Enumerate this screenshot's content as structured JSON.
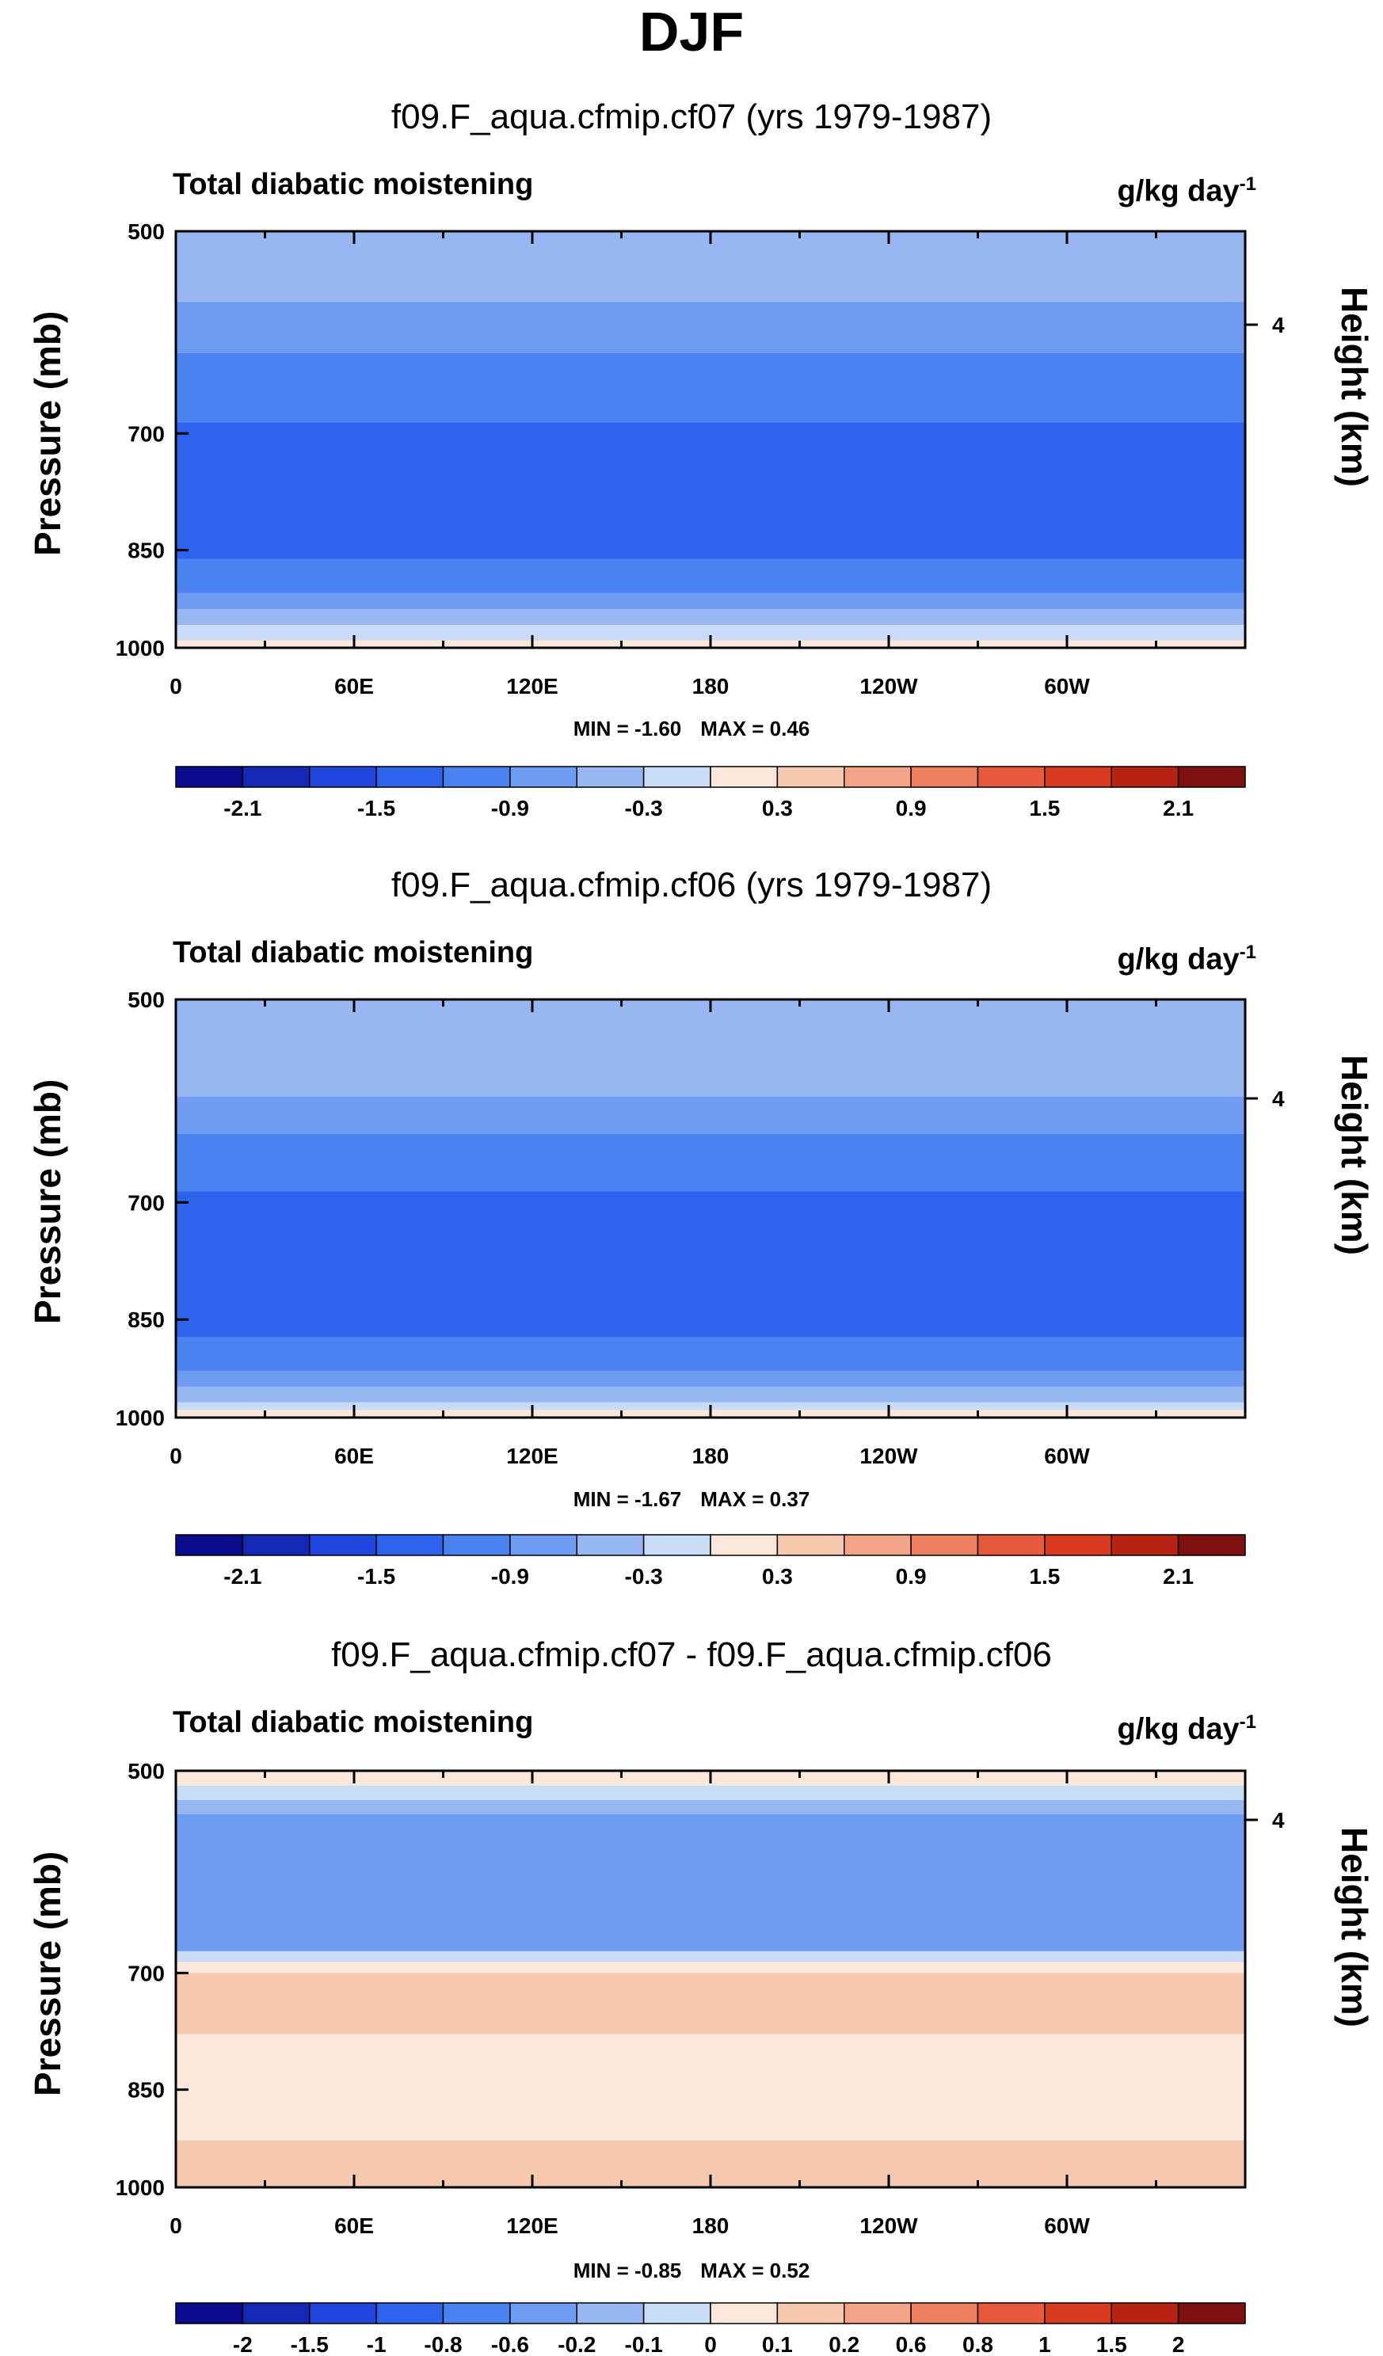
{
  "figure": {
    "title": "DJF",
    "panels": [
      {
        "title": "f09.F_aqua.cfmip.cf07 (yrs 1979-1987)",
        "variable": "Total diabatic moistening",
        "units": "g/kg day",
        "units_exp": "-1",
        "ylabel": "Pressure (mb)",
        "ylabel_right": "Height (km)",
        "min_label": "MIN = -1.60",
        "max_label": "MAX = 0.46"
      },
      {
        "title": "f09.F_aqua.cfmip.cf06 (yrs 1979-1987)",
        "variable": "Total diabatic moistening",
        "units": "g/kg day",
        "units_exp": "-1",
        "ylabel": "Pressure (mb)",
        "ylabel_right": "Height (km)",
        "min_label": "MIN = -1.67",
        "max_label": "MAX = 0.37"
      },
      {
        "title": "f09.F_aqua.cfmip.cf07 - f09.F_aqua.cfmip.cf06",
        "variable": "Total diabatic moistening",
        "units": "g/kg day",
        "units_exp": "-1",
        "ylabel": "Pressure (mb)",
        "ylabel_right": "Height (km)",
        "min_label": "MIN = -0.85",
        "max_label": "MAX = 0.52"
      }
    ],
    "pressure_ticks": [
      "500",
      "700",
      "850",
      "1000"
    ],
    "longitude_ticks": [
      "0",
      "60E",
      "120E",
      "180",
      "120W",
      "60W"
    ],
    "height_ticks": [
      "4"
    ]
  },
  "chart_data": [
    {
      "type": "heatmap",
      "title": "f09.F_aqua.cfmip.cf07 (yrs 1979-1987)",
      "xlabel": "",
      "ylabel": "Pressure (mb)",
      "x_ticks": [
        "0",
        "60E",
        "120E",
        "180",
        "120W",
        "60W"
      ],
      "y_ticks": [
        500,
        700,
        850,
        1000
      ],
      "ylim": [
        1000,
        500
      ],
      "min": -1.6,
      "max": 0.46,
      "colorbar_labels": [
        "-2.1",
        "-1.5",
        "-0.9",
        "-0.3",
        "0.3",
        "0.9",
        "1.5",
        "2.1"
      ],
      "levels": [
        -2.4,
        -2.1,
        -1.8,
        -1.5,
        -1.2,
        -0.9,
        -0.6,
        -0.3,
        0,
        0.3,
        0.6,
        0.9,
        1.2,
        1.5,
        1.8,
        2.1,
        2.4
      ],
      "profile": [
        {
          "p": 500,
          "v": -0.45
        },
        {
          "p": 560,
          "v": -0.6
        },
        {
          "p": 620,
          "v": -0.95
        },
        {
          "p": 700,
          "v": -1.25
        },
        {
          "p": 780,
          "v": -1.35
        },
        {
          "p": 850,
          "v": -1.3
        },
        {
          "p": 900,
          "v": -1.0
        },
        {
          "p": 940,
          "v": -0.6
        },
        {
          "p": 970,
          "v": -0.25
        },
        {
          "p": 990,
          "v": 0.1
        },
        {
          "p": 1000,
          "v": 0.2
        }
      ]
    },
    {
      "type": "heatmap",
      "title": "f09.F_aqua.cfmip.cf06 (yrs 1979-1987)",
      "xlabel": "",
      "ylabel": "Pressure (mb)",
      "x_ticks": [
        "0",
        "60E",
        "120E",
        "180",
        "120W",
        "60W"
      ],
      "y_ticks": [
        500,
        700,
        850,
        1000
      ],
      "ylim": [
        1000,
        500
      ],
      "min": -1.67,
      "max": 0.37,
      "colorbar_labels": [
        "-2.1",
        "-1.5",
        "-0.9",
        "-0.3",
        "0.3",
        "0.9",
        "1.5",
        "2.1"
      ],
      "levels": [
        -2.4,
        -2.1,
        -1.8,
        -1.5,
        -1.2,
        -0.9,
        -0.6,
        -0.3,
        0,
        0.3,
        0.6,
        0.9,
        1.2,
        1.5,
        1.8,
        2.1,
        2.4
      ],
      "profile": [
        {
          "p": 500,
          "v": -0.35
        },
        {
          "p": 560,
          "v": -0.45
        },
        {
          "p": 620,
          "v": -0.85
        },
        {
          "p": 700,
          "v": -1.3
        },
        {
          "p": 780,
          "v": -1.4
        },
        {
          "p": 850,
          "v": -1.35
        },
        {
          "p": 900,
          "v": -1.1
        },
        {
          "p": 940,
          "v": -0.7
        },
        {
          "p": 970,
          "v": -0.3
        },
        {
          "p": 990,
          "v": 0.05
        },
        {
          "p": 1000,
          "v": 0.15
        }
      ]
    },
    {
      "type": "heatmap",
      "title": "f09.F_aqua.cfmip.cf07 - f09.F_aqua.cfmip.cf06",
      "xlabel": "",
      "ylabel": "Pressure (mb)",
      "x_ticks": [
        "0",
        "60E",
        "120E",
        "180",
        "120W",
        "60W"
      ],
      "y_ticks": [
        500,
        700,
        850,
        1000
      ],
      "ylim": [
        1000,
        500
      ],
      "min": -0.85,
      "max": 0.52,
      "colorbar_labels": [
        "-2",
        "-1.5",
        "-1",
        "-0.8",
        "-0.6",
        "-0.2",
        "-0.1",
        "0",
        "0.1",
        "0.2",
        "0.6",
        "0.8",
        "1",
        "1.5",
        "2"
      ],
      "levels": [
        -2.5,
        -2,
        -1.5,
        -1,
        -0.8,
        -0.6,
        -0.2,
        -0.1,
        0,
        0.1,
        0.2,
        0.6,
        0.8,
        1,
        1.5,
        2,
        2.5
      ],
      "profile": [
        {
          "p": 500,
          "v": 0.05
        },
        {
          "p": 530,
          "v": -0.15
        },
        {
          "p": 600,
          "v": -0.5
        },
        {
          "p": 660,
          "v": -0.3
        },
        {
          "p": 700,
          "v": 0.15
        },
        {
          "p": 780,
          "v": 0.1
        },
        {
          "p": 850,
          "v": 0.05
        },
        {
          "p": 920,
          "v": 0.1
        },
        {
          "p": 1000,
          "v": 0.15
        }
      ]
    }
  ],
  "colorbar_colors": [
    "#0a0a8c",
    "#1428b4",
    "#1e46dc",
    "#2c64ee",
    "#4a82f2",
    "#6e9cf2",
    "#98b6f2",
    "#c8dcf8",
    "#fbe8da",
    "#f7c8b0",
    "#f3a486",
    "#ee8060",
    "#e85a3c",
    "#d83a20",
    "#b82212",
    "#7e1010"
  ]
}
